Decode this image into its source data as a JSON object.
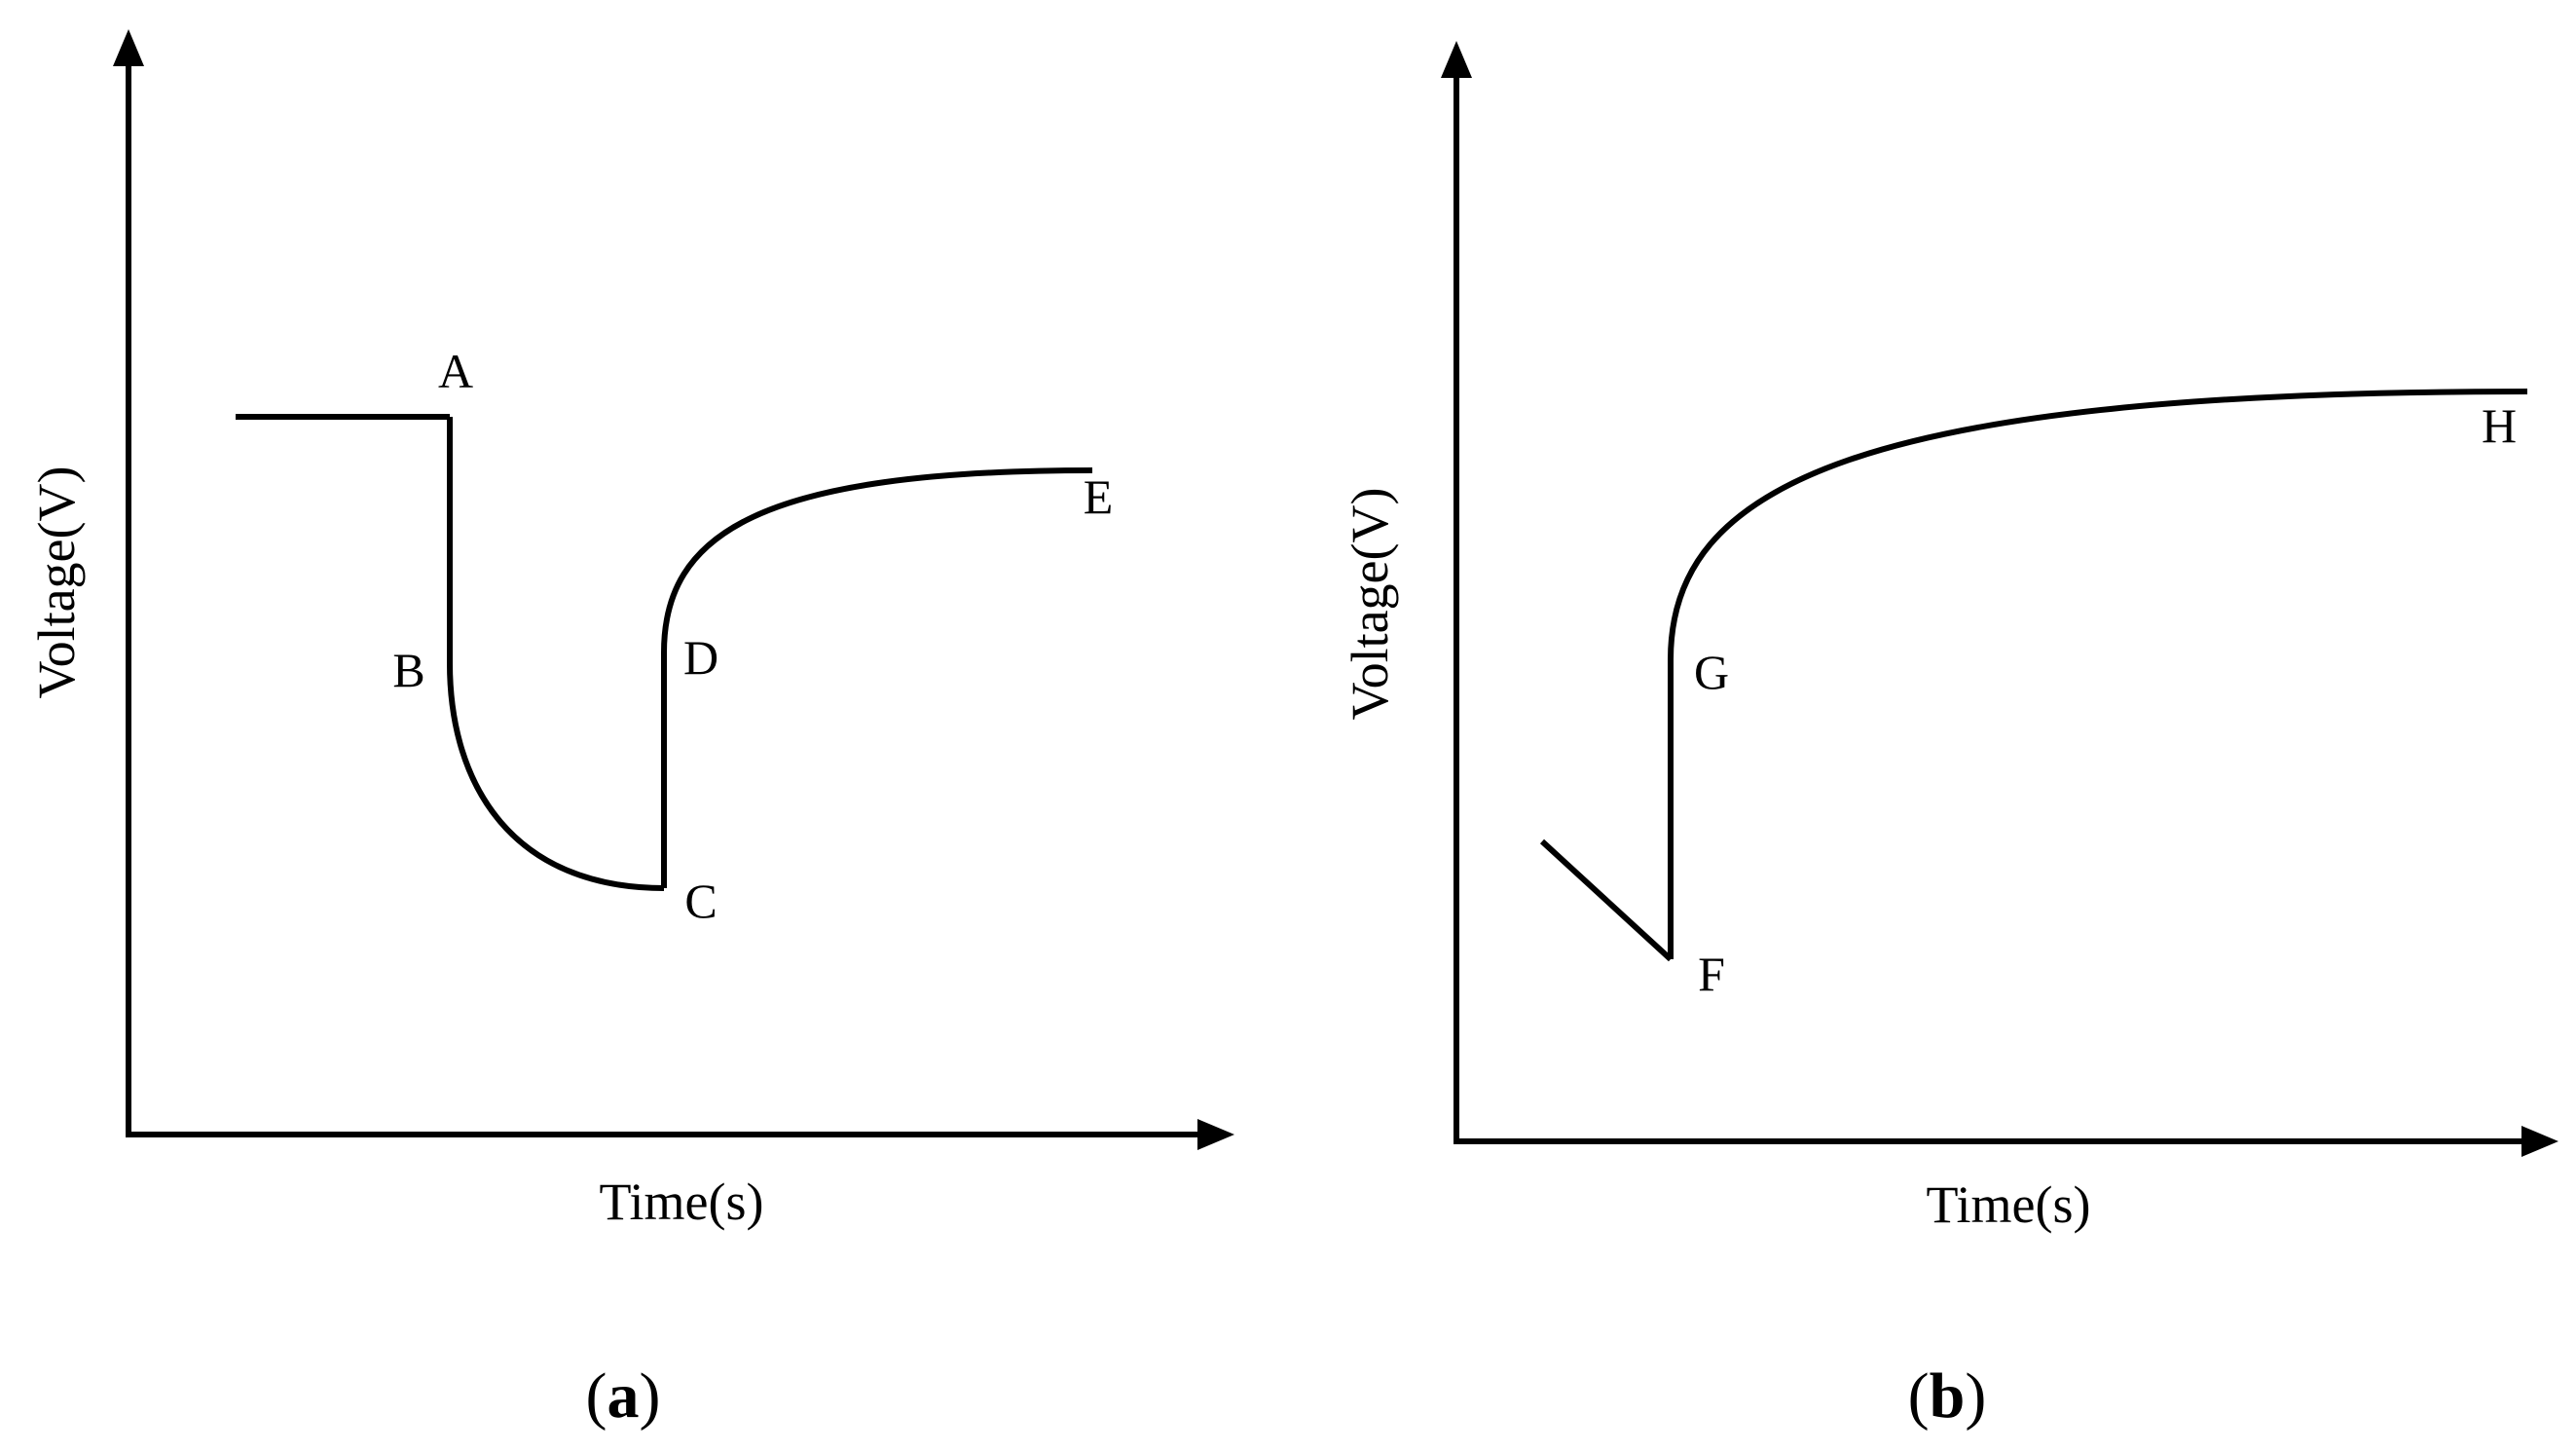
{
  "chart_data": [
    {
      "type": "line",
      "panel": "a",
      "panel_label": "a",
      "title": "",
      "xlabel": "Time(s)",
      "ylabel": "Voltage(V)",
      "xlim": [
        0,
        100
      ],
      "ylim": [
        0,
        100
      ],
      "series": [
        {
          "segments": [
            {
              "kind": "line",
              "points": [
                [
                  10,
                  67
                ],
                [
                  30,
                  67
                ]
              ]
            },
            {
              "kind": "line",
              "points": [
                [
                  30,
                  67
                ],
                [
                  30,
                  44
                ]
              ]
            },
            {
              "kind": "curve",
              "from": [
                30,
                44
              ],
              "to": [
                50,
                23
              ],
              "shape": "concave-up"
            },
            {
              "kind": "line",
              "points": [
                [
                  50,
                  23
                ],
                [
                  50,
                  45
                ]
              ]
            },
            {
              "kind": "curve",
              "from": [
                50,
                45
              ],
              "to": [
                90,
                62
              ],
              "shape": "concave-down"
            }
          ]
        }
      ],
      "points": [
        {
          "label": "A",
          "x": 30,
          "y": 67
        },
        {
          "label": "B",
          "x": 30,
          "y": 44
        },
        {
          "label": "C",
          "x": 50,
          "y": 23
        },
        {
          "label": "D",
          "x": 50,
          "y": 45
        },
        {
          "label": "E",
          "x": 90,
          "y": 62
        }
      ]
    },
    {
      "type": "line",
      "panel": "b",
      "panel_label": "b",
      "title": "",
      "xlabel": "Time(s)",
      "ylabel": "Voltage(V)",
      "xlim": [
        0,
        100
      ],
      "ylim": [
        0,
        100
      ],
      "series": [
        {
          "segments": [
            {
              "kind": "line",
              "points": [
                [
                  8,
                  28
                ],
                [
                  20,
                  17
                ]
              ]
            },
            {
              "kind": "line",
              "points": [
                [
                  20,
                  17
                ],
                [
                  20,
                  45
                ]
              ]
            },
            {
              "kind": "curve",
              "from": [
                20,
                45
              ],
              "to": [
                100,
                70
              ],
              "shape": "concave-down"
            }
          ]
        }
      ],
      "points": [
        {
          "label": "F",
          "x": 20,
          "y": 17
        },
        {
          "label": "G",
          "x": 20,
          "y": 45
        },
        {
          "label": "H",
          "x": 97,
          "y": 70
        }
      ]
    }
  ]
}
